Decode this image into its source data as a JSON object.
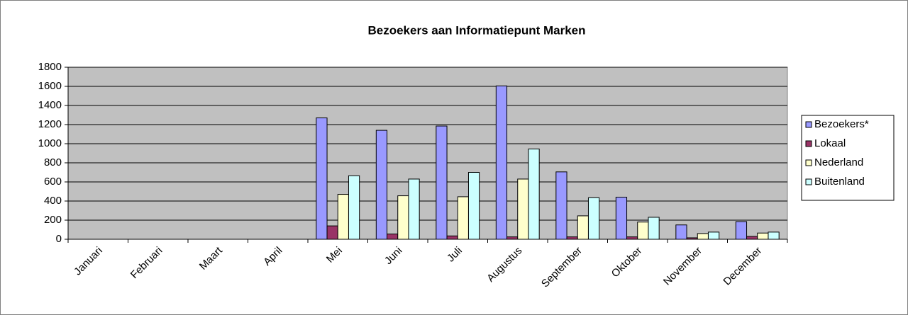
{
  "chart_data": {
    "type": "bar",
    "title": "Bezoekers aan Informatiepunt Marken",
    "categories": [
      "Januari",
      "Februari",
      "Maart",
      "April",
      "Mei",
      "Juni",
      "Juli",
      "Augustus",
      "September",
      "Oktober",
      "November",
      "December"
    ],
    "series": [
      {
        "name": "Bezoekers*",
        "color": "#9999ff",
        "values": [
          null,
          null,
          null,
          null,
          1270,
          1140,
          1185,
          1605,
          705,
          440,
          150,
          185
        ]
      },
      {
        "name": "Lokaal",
        "color": "#993366",
        "values": [
          null,
          null,
          null,
          null,
          140,
          55,
          35,
          25,
          25,
          25,
          15,
          30
        ]
      },
      {
        "name": "Nederland",
        "color": "#ffffcc",
        "values": [
          null,
          null,
          null,
          null,
          470,
          455,
          445,
          630,
          245,
          180,
          60,
          65
        ]
      },
      {
        "name": "Buitenland",
        "color": "#ccffff",
        "values": [
          null,
          null,
          null,
          null,
          665,
          630,
          700,
          945,
          435,
          230,
          75,
          75
        ]
      }
    ],
    "ylim": [
      0,
      1800
    ],
    "yticks": [
      0,
      200,
      400,
      600,
      800,
      1000,
      1200,
      1400,
      1600,
      1800
    ],
    "grid": true,
    "legend": "right",
    "plot_background": "#c0c0c0"
  }
}
